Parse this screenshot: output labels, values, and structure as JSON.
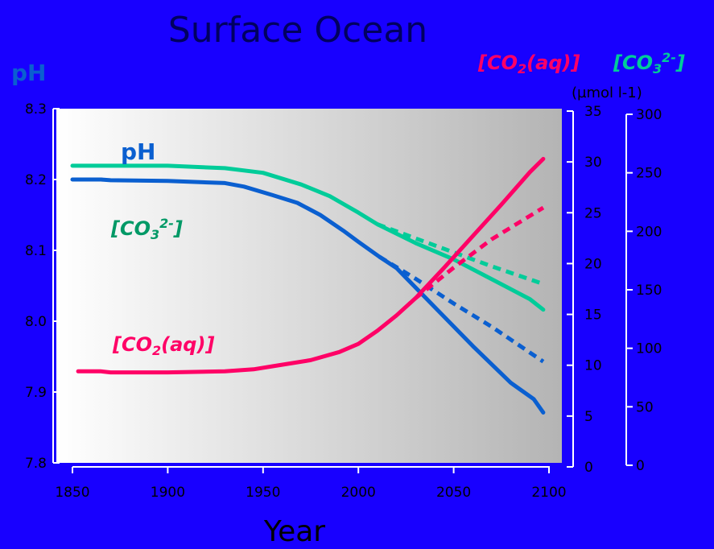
{
  "chart_data": {
    "type": "line",
    "title": "Surface Ocean",
    "xlabel": "Year",
    "x_ticks": [
      1850,
      1900,
      1950,
      2000,
      2050,
      2100
    ],
    "xlim": [
      1850,
      2100
    ],
    "axes": {
      "ph": {
        "label": "pH",
        "ylim": [
          7.8,
          8.3
        ],
        "ticks": [
          "7.8",
          "7.9",
          "8.0",
          "8.1",
          "8.2",
          "8.3"
        ]
      },
      "co2": {
        "label_prefix": "[CO",
        "label_sub": "2",
        "label_suffix": "(aq)]",
        "unit": "(µmol l-1)",
        "ylim": [
          0,
          35
        ],
        "ticks": [
          "0",
          "5",
          "10",
          "15",
          "20",
          "25",
          "30",
          "35"
        ]
      },
      "co3": {
        "label_prefix": "[CO",
        "label_sub": "3",
        "label_sup": "2-",
        "label_suffix": "]",
        "ylim": [
          0,
          300
        ],
        "ticks": [
          "0",
          "50",
          "100",
          "150",
          "200",
          "250",
          "300"
        ]
      }
    },
    "series": [
      {
        "key": "ph",
        "axis": "ph",
        "color": "#0a5fd0",
        "style": "solid",
        "x": [
          1850,
          1865,
          1870,
          1900,
          1930,
          1940,
          1955,
          1968,
          1980,
          1992,
          2000,
          2011,
          2020,
          2040,
          2060,
          2080,
          2092,
          2097
        ],
        "y": [
          8.2,
          8.2,
          8.199,
          8.198,
          8.195,
          8.19,
          8.178,
          8.167,
          8.15,
          8.128,
          8.112,
          8.091,
          8.075,
          8.02,
          7.965,
          7.913,
          7.89,
          7.871
        ]
      },
      {
        "key": "ph_proj",
        "axis": "ph",
        "color": "#0a5fd0",
        "style": "dashed",
        "x": [
          2011,
          2030,
          2050,
          2070,
          2097
        ],
        "y": [
          8.091,
          8.06,
          8.025,
          7.992,
          7.943
        ]
      },
      {
        "key": "co3",
        "axis": "co3",
        "color": "#00cc99",
        "style": "solid",
        "x": [
          1850,
          1900,
          1930,
          1950,
          1970,
          1985,
          2000,
          2010,
          2030,
          2050,
          2070,
          2090,
          2097
        ],
        "y": [
          256,
          256,
          254,
          250,
          240,
          230,
          216,
          206,
          190,
          176,
          159,
          142,
          133
        ]
      },
      {
        "key": "co3_proj",
        "axis": "co3",
        "color": "#00cc99",
        "style": "dashed",
        "x": [
          2010,
          2030,
          2050,
          2070,
          2097
        ],
        "y": [
          206,
          194,
          182,
          170,
          155
        ]
      },
      {
        "key": "co2",
        "axis": "co2",
        "color": "#ff0066",
        "style": "solid",
        "x": [
          1853,
          1865,
          1870,
          1900,
          1930,
          1945,
          1955,
          1975,
          1990,
          2000,
          2010,
          2020,
          2030,
          2045,
          2060,
          2075,
          2090,
          2097
        ],
        "y": [
          9.4,
          9.4,
          9.3,
          9.3,
          9.4,
          9.6,
          9.9,
          10.5,
          11.3,
          12.1,
          13.4,
          14.9,
          16.6,
          19.6,
          22.7,
          25.8,
          29.0,
          30.3
        ]
      },
      {
        "key": "co2_proj",
        "axis": "co2",
        "color": "#ff0066",
        "style": "dashed",
        "x": [
          2030,
          2050,
          2070,
          2097
        ],
        "y": [
          16.6,
          19.6,
          22.4,
          25.5
        ]
      }
    ],
    "annotations": {
      "ph": "pH",
      "co3_prefix": "[CO",
      "co3_sub": "3",
      "co3_sup": "2-",
      "co3_suffix": "]",
      "co2_prefix": "[CO",
      "co2_sub": "2",
      "co2_suffix": "(aq)]"
    },
    "colors": {
      "background": "#1800ff",
      "ph": "#0a5fd0",
      "co3": "#00cc99",
      "co2": "#ff0066",
      "title": "#000060"
    }
  }
}
